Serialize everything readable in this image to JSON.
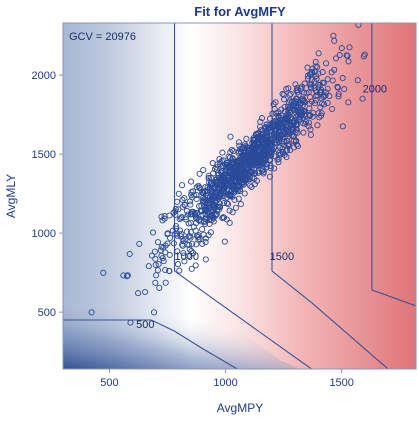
{
  "chart_data": {
    "type": "scatter",
    "title": "Fit for AvgMFY",
    "xlabel": "AvgMPY",
    "ylabel": "AvgMLY",
    "xlim": [
      300,
      1820
    ],
    "ylim": [
      140,
      2330
    ],
    "x_ticks": [
      500,
      1000,
      1500
    ],
    "y_ticks": [
      500,
      1000,
      1500,
      2000
    ],
    "annotation": "GCV = 20976",
    "contour_levels": [
      500,
      1000,
      1500,
      2000
    ],
    "colors": {
      "low": "#3a5aa0",
      "mid": "#ffffff",
      "high": "#d8545a",
      "point": "#2a4a9a",
      "contour": "#3b5494",
      "text": "#1f3a8a"
    },
    "series": [
      {
        "name": "observations",
        "n_points": 1200,
        "center": [
          1100,
          1450
        ],
        "trend_slope": 1.45,
        "spread_x": 180,
        "spread_y": 70
      }
    ]
  }
}
